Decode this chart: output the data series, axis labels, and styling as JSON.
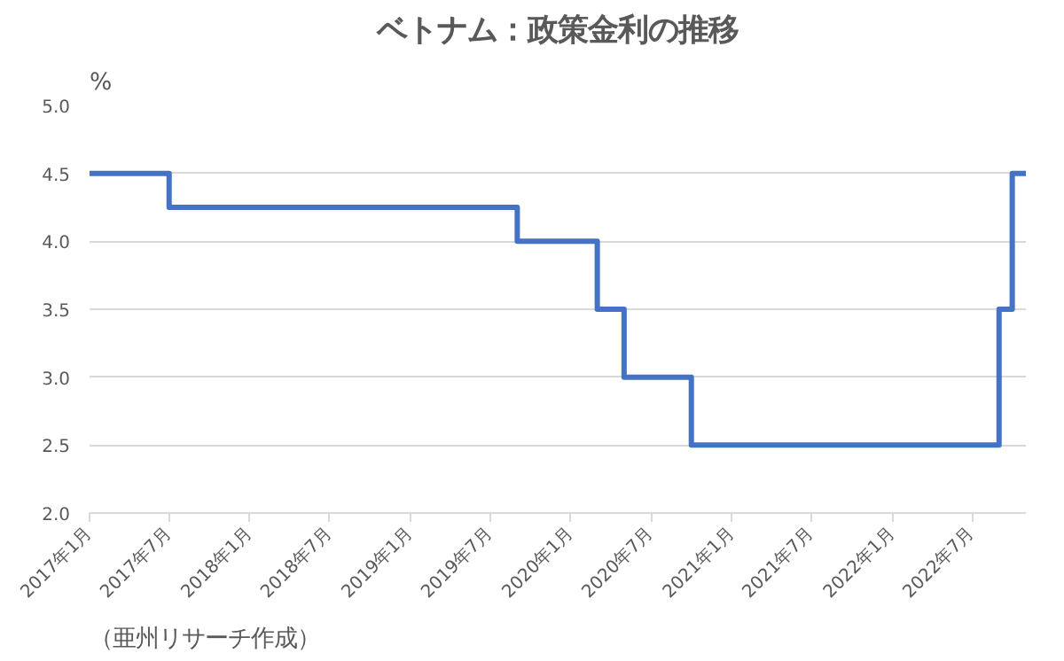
{
  "chart_data": {
    "type": "step",
    "title": "ベトナム：政策金利の推移",
    "ylabel": "%",
    "annotations": [
      "（亜州リサーチ作成）"
    ],
    "x": [
      "2017-01",
      "2017-07",
      "2019-09",
      "2020-03",
      "2020-05",
      "2020-10",
      "2022-09",
      "2022-10",
      "2022-11"
    ],
    "series": [
      {
        "color": "#4472c4",
        "values": [
          4.5,
          4.25,
          4.0,
          3.5,
          3.0,
          2.5,
          3.5,
          4.5,
          4.5
        ]
      }
    ],
    "xlim": [
      "2017-01",
      "2022-11"
    ],
    "xticks": [
      {
        "value": "2017-01",
        "label": "2017年1月"
      },
      {
        "value": "2017-07",
        "label": "2017年7月"
      },
      {
        "value": "2018-01",
        "label": "2018年1月"
      },
      {
        "value": "2018-07",
        "label": "2018年7月"
      },
      {
        "value": "2019-01",
        "label": "2019年1月"
      },
      {
        "value": "2019-07",
        "label": "2019年7月"
      },
      {
        "value": "2020-01",
        "label": "2020年1月"
      },
      {
        "value": "2020-07",
        "label": "2020年7月"
      },
      {
        "value": "2021-01",
        "label": "2021年1月"
      },
      {
        "value": "2021-07",
        "label": "2021年7月"
      },
      {
        "value": "2022-01",
        "label": "2022年1月"
      },
      {
        "value": "2022-07",
        "label": "2022年7月"
      }
    ],
    "ylim": [
      2.0,
      5.0
    ],
    "yticks": [
      {
        "value": 2.0,
        "label": "2.0"
      },
      {
        "value": 2.5,
        "label": "2.5"
      },
      {
        "value": 3.0,
        "label": "3.0"
      },
      {
        "value": 3.5,
        "label": "3.5"
      },
      {
        "value": 4.0,
        "label": "4.0"
      },
      {
        "value": 4.5,
        "label": "4.5"
      },
      {
        "value": 5.0,
        "label": "5.0"
      }
    ],
    "grid": "y",
    "marker": "none",
    "line_style": "solid"
  }
}
